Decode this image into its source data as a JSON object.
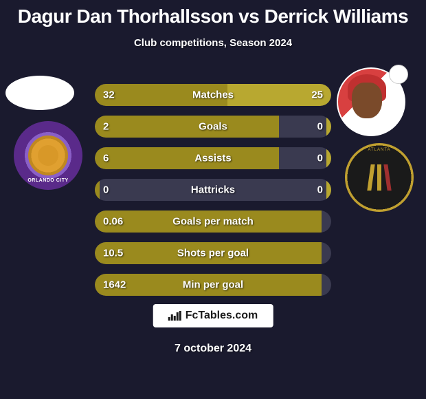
{
  "title": "Dagur Dan Thorhallsson vs Derrick Williams",
  "subtitle": "Club competitions, Season 2024",
  "colors": {
    "bar_left": "#9a8a1e",
    "bar_right": "#b8a830",
    "bar_bg": "#3a3a50",
    "background": "#1a1a2e",
    "text": "#ffffff"
  },
  "stats": [
    {
      "label": "Matches",
      "left_value": "32",
      "right_value": "25",
      "left_pct": 56,
      "right_pct": 44
    },
    {
      "label": "Goals",
      "left_value": "2",
      "right_value": "0",
      "left_pct": 78,
      "right_pct": 2
    },
    {
      "label": "Assists",
      "left_value": "6",
      "right_value": "0",
      "left_pct": 78,
      "right_pct": 2
    },
    {
      "label": "Hattricks",
      "left_value": "0",
      "right_value": "0",
      "left_pct": 2,
      "right_pct": 2
    },
    {
      "label": "Goals per match",
      "left_value": "0.06",
      "right_value": "",
      "left_pct": 96,
      "right_pct": 0
    },
    {
      "label": "Shots per goal",
      "left_value": "10.5",
      "right_value": "",
      "left_pct": 96,
      "right_pct": 0
    },
    {
      "label": "Min per goal",
      "left_value": "1642",
      "right_value": "",
      "left_pct": 96,
      "right_pct": 0
    }
  ],
  "footer": {
    "brand": "FcTables.com",
    "date": "7 october 2024"
  },
  "clubs": {
    "left_name": "Orlando City",
    "right_name": "Atlanta United FC"
  }
}
